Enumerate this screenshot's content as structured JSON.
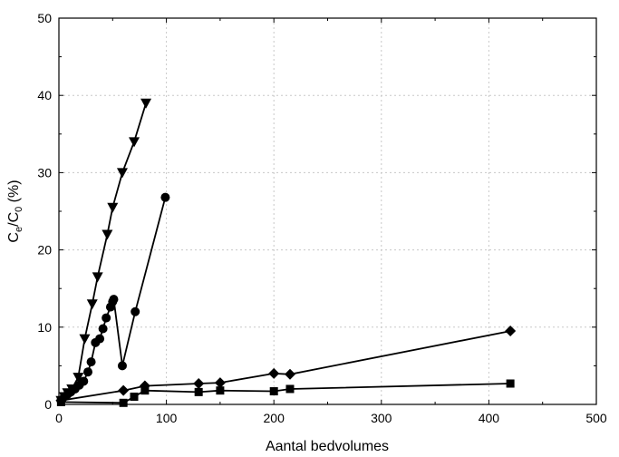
{
  "chart_data": {
    "type": "line",
    "title": "",
    "xlabel": "Aantal bedvolumes",
    "ylabel": {
      "base1": "C",
      "sub1": "e",
      "mid": "/C",
      "sub2": "0",
      "tail": " (%)"
    },
    "xlim": [
      0,
      500
    ],
    "ylim": [
      0,
      50
    ],
    "xticks": [
      0,
      100,
      200,
      300,
      400,
      500
    ],
    "yticks": [
      0,
      10,
      20,
      30,
      40,
      50
    ],
    "grid": true,
    "legend": "none",
    "series": [
      {
        "marker": "triangle-down",
        "color": "#000000",
        "x": [
          2,
          5,
          8,
          12,
          18,
          24,
          31,
          36,
          45,
          50,
          59,
          70,
          81
        ],
        "y": [
          0.5,
          1.0,
          1.5,
          2.0,
          3.5,
          8.5,
          13.0,
          16.5,
          22.0,
          25.5,
          30.0,
          34.0,
          39.0
        ]
      },
      {
        "marker": "circle",
        "color": "#000000",
        "x": [
          2,
          5,
          8,
          11,
          15,
          19,
          23,
          27,
          30,
          34,
          38,
          41,
          44,
          48,
          50,
          51,
          59,
          71,
          99
        ],
        "y": [
          0.5,
          1.0,
          1.3,
          1.6,
          2.0,
          2.5,
          3.0,
          4.2,
          5.5,
          8.0,
          8.5,
          9.8,
          11.2,
          12.6,
          13.3,
          13.6,
          5.0,
          12.0,
          26.8
        ]
      },
      {
        "marker": "diamond",
        "color": "#000000",
        "x": [
          2,
          60,
          80,
          130,
          150,
          200,
          215,
          420
        ],
        "y": [
          0.5,
          1.8,
          2.4,
          2.7,
          2.8,
          4.0,
          3.9,
          9.5
        ]
      },
      {
        "marker": "square",
        "color": "#000000",
        "x": [
          2,
          60,
          70,
          80,
          130,
          150,
          200,
          215,
          420
        ],
        "y": [
          0.3,
          0.2,
          1.0,
          1.8,
          1.6,
          1.8,
          1.7,
          2.0,
          2.7
        ]
      }
    ]
  }
}
